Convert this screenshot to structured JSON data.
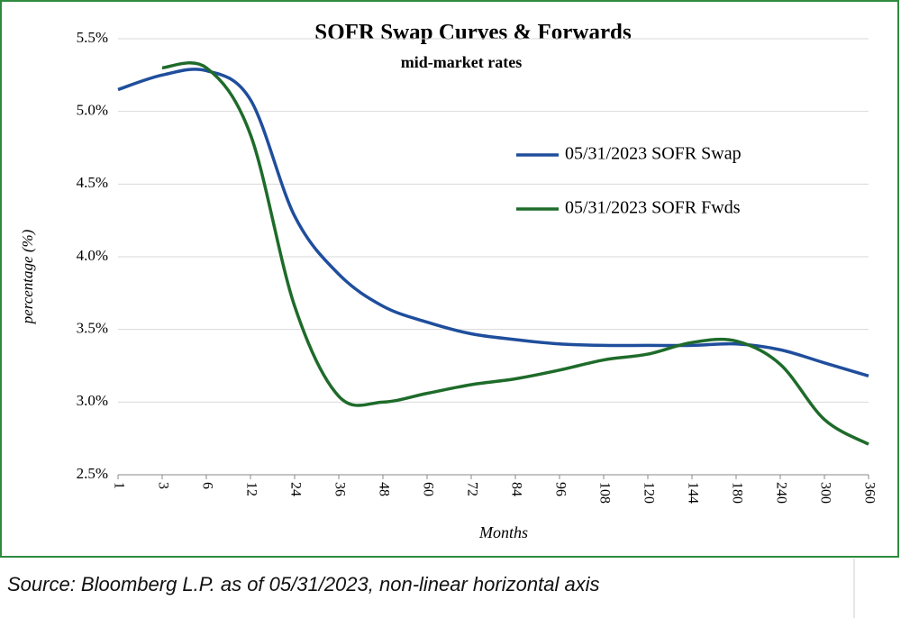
{
  "chart_data": {
    "type": "line",
    "title": "SOFR Swap Curves & Forwards",
    "subtitle": "mid-market  rates",
    "x_label": "Months",
    "y_label": "percentage (%)",
    "categories": [
      "1",
      "3",
      "6",
      "12",
      "24",
      "36",
      "48",
      "60",
      "72",
      "84",
      "96",
      "108",
      "120",
      "144",
      "180",
      "240",
      "300",
      "360"
    ],
    "series": [
      {
        "name": "05/31/2023 SOFR Swap",
        "color": "#1f4e9c",
        "values": [
          5.15,
          5.25,
          5.28,
          5.08,
          4.28,
          3.88,
          3.66,
          3.55,
          3.47,
          3.43,
          3.4,
          3.39,
          3.39,
          3.39,
          3.4,
          3.36,
          3.27,
          3.18
        ]
      },
      {
        "name": "05/31/2023 SOFR Fwds",
        "color": "#1e6b2a",
        "values": [
          null,
          5.3,
          5.3,
          4.84,
          3.66,
          3.04,
          3.0,
          3.06,
          3.12,
          3.16,
          3.22,
          3.29,
          3.33,
          3.41,
          3.42,
          3.26,
          2.88,
          2.71
        ]
      }
    ],
    "ylim": [
      2.5,
      5.5
    ],
    "yticks": [
      {
        "value": 2.5,
        "label": "2.5%"
      },
      {
        "value": 3.0,
        "label": "3.0%"
      },
      {
        "value": 3.5,
        "label": "3.5%"
      },
      {
        "value": 4.0,
        "label": "4.0%"
      },
      {
        "value": 4.5,
        "label": "4.5%"
      },
      {
        "value": 5.0,
        "label": "5.0%"
      },
      {
        "value": 5.5,
        "label": "5.5%"
      }
    ],
    "grid": true,
    "note": "Source: Bloomberg L.P. as of 05/31/2023, non-linear horizontal axis"
  }
}
